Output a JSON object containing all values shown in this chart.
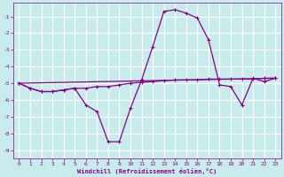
{
  "xlabel": "Windchill (Refroidissement éolien,°C)",
  "bg_color": "#c8ecec",
  "grid_color": "#ffffff",
  "line_color": "#880088",
  "xlim": [
    -0.5,
    23.5
  ],
  "ylim": [
    -9.5,
    -0.2
  ],
  "yticks": [
    -9,
    -8,
    -7,
    -6,
    -5,
    -4,
    -3,
    -2,
    -1
  ],
  "xticks": [
    0,
    1,
    2,
    3,
    4,
    5,
    6,
    7,
    8,
    9,
    10,
    11,
    12,
    13,
    14,
    15,
    16,
    17,
    18,
    19,
    20,
    21,
    22,
    23
  ],
  "curve1_x": [
    0,
    1,
    2,
    3,
    4,
    5,
    6,
    7,
    8,
    9,
    10,
    11,
    12,
    13,
    14,
    15,
    16,
    17,
    18,
    19,
    20,
    21,
    22,
    23
  ],
  "curve1_y": [
    -5.0,
    -5.3,
    -5.5,
    -5.5,
    -5.4,
    -5.3,
    -6.3,
    -6.7,
    -8.5,
    -8.5,
    -6.5,
    -4.8,
    -2.8,
    -0.7,
    -0.6,
    -0.8,
    -1.1,
    -2.4,
    -5.1,
    -5.2,
    -6.3,
    -4.7,
    -4.9,
    -4.7
  ],
  "curve2_x": [
    0,
    1,
    2,
    3,
    4,
    5,
    6,
    7,
    8,
    9,
    10,
    11,
    12,
    13,
    14,
    15,
    16,
    17,
    18,
    19,
    20,
    21,
    22,
    23
  ],
  "curve2_y": [
    -5.0,
    -5.3,
    -5.5,
    -5.5,
    -5.4,
    -5.3,
    -5.3,
    -5.2,
    -5.2,
    -5.1,
    -5.0,
    -4.95,
    -4.9,
    -4.85,
    -4.8,
    -4.8,
    -4.8,
    -4.75,
    -4.75,
    -4.75,
    -4.75,
    -4.75,
    -4.7,
    -4.7
  ],
  "curve3_x": [
    0,
    23
  ],
  "curve3_y": [
    -5.0,
    -4.7
  ]
}
